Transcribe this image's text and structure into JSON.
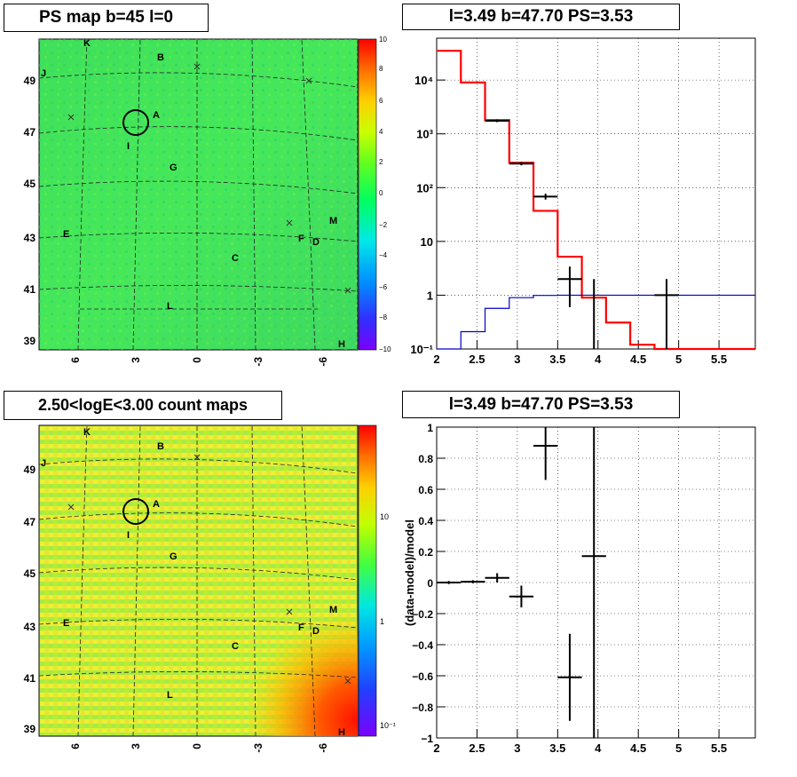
{
  "panels": {
    "map_top": {
      "title": "PS map b=45 l=0",
      "colorbar": {
        "ticks": [
          "10",
          "8",
          "6",
          "4",
          "2",
          "0",
          "−2",
          "−4",
          "−6",
          "−8",
          "−10"
        ]
      }
    },
    "spectrum": {
      "title": "l=3.49 b=47.70 PS=3.53"
    },
    "map_bottom": {
      "title": "2.50<logE<3.00 count maps",
      "colorbar": {
        "ticks": [
          "10",
          "1",
          "10⁻¹"
        ]
      }
    },
    "residual": {
      "title": "l=3.49 b=47.70 PS=3.53"
    }
  },
  "map_axes": {
    "lat_labels": [
      "49",
      "47",
      "45",
      "43",
      "41",
      "39"
    ],
    "lon_labels": [
      "6",
      "3",
      "0",
      "-3",
      "-6"
    ],
    "source_labels": [
      "K",
      "B",
      "J",
      "A",
      "I",
      "G",
      "E",
      "M",
      "F",
      "D",
      "C",
      "L",
      "H"
    ]
  },
  "chart_data": [
    {
      "type": "line",
      "title": "l=3.49 b=47.70 PS=3.53",
      "log_y": true,
      "xlim": [
        2.0,
        5.95
      ],
      "ylim": [
        0.1,
        60000
      ],
      "x_ticks": [
        "2",
        "2.5",
        "3",
        "3.5",
        "4",
        "4.5",
        "5",
        "5.5"
      ],
      "y_ticks": [
        "10⁻¹",
        "1",
        "10",
        "10²",
        "10³",
        "10⁴"
      ],
      "grid": true,
      "bin_edges": [
        2.0,
        2.3,
        2.6,
        2.9,
        3.2,
        3.5,
        3.8,
        4.1,
        4.4,
        4.7,
        5.0,
        5.95
      ],
      "series": [
        {
          "role": "model",
          "color": "#ff0000",
          "values": [
            35000,
            9000,
            1800,
            290,
            37,
            5.2,
            0.9,
            0.31,
            0.12,
            0.1,
            0.1
          ]
        },
        {
          "role": "background",
          "color": "#0000cc",
          "values": [
            0.1,
            0.21,
            0.57,
            0.9,
            0.99,
            1.0,
            1.0,
            1.0,
            1.0,
            1.0,
            1.0
          ]
        }
      ],
      "data_points": [
        {
          "x": 2.75,
          "y": 1750,
          "xerr": 0.15,
          "ylo": 1650,
          "yhi": 1850
        },
        {
          "x": 3.05,
          "y": 280,
          "xerr": 0.15,
          "ylo": 260,
          "yhi": 300
        },
        {
          "x": 3.35,
          "y": 68,
          "xerr": 0.15,
          "ylo": 60,
          "yhi": 77
        },
        {
          "x": 3.65,
          "y": 2.0,
          "xerr": 0.15,
          "ylo": 0.6,
          "yhi": 3.4
        },
        {
          "x": 3.95,
          "y": 1.0,
          "xerr": 0.0,
          "ylo": 0.1,
          "yhi": 2.0
        },
        {
          "x": 4.85,
          "y": 1.0,
          "xerr": 0.15,
          "ylo": 0.1,
          "yhi": 2.0
        }
      ]
    },
    {
      "type": "scatter",
      "title": "l=3.49 b=47.70 PS=3.53",
      "ylabel": "(data-model)/model",
      "xlim": [
        2.0,
        5.95
      ],
      "ylim": [
        -1,
        1
      ],
      "x_ticks": [
        "2",
        "2.5",
        "3",
        "3.5",
        "4",
        "4.5",
        "5",
        "5.5"
      ],
      "y_ticks": [
        "−1",
        "−0.8",
        "−0.6",
        "−0.4",
        "−0.2",
        "0",
        "0.2",
        "0.4",
        "0.6",
        "0.8",
        "1"
      ],
      "grid": true,
      "points": [
        {
          "x": 2.15,
          "y": 0.0,
          "xerr": 0.15,
          "yerr": 0.01
        },
        {
          "x": 2.45,
          "y": 0.005,
          "xerr": 0.15,
          "yerr": 0.01
        },
        {
          "x": 2.75,
          "y": 0.03,
          "xerr": 0.15,
          "yerr": 0.03
        },
        {
          "x": 3.05,
          "y": -0.09,
          "xerr": 0.15,
          "yerr": 0.07
        },
        {
          "x": 3.35,
          "y": 0.88,
          "xerr": 0.15,
          "yerr": 0.22
        },
        {
          "x": 3.65,
          "y": -0.61,
          "xerr": 0.15,
          "yerr": 0.28
        },
        {
          "x": 3.95,
          "y": 0.17,
          "xerr": 0.15,
          "yerr": 1.2
        }
      ]
    }
  ]
}
